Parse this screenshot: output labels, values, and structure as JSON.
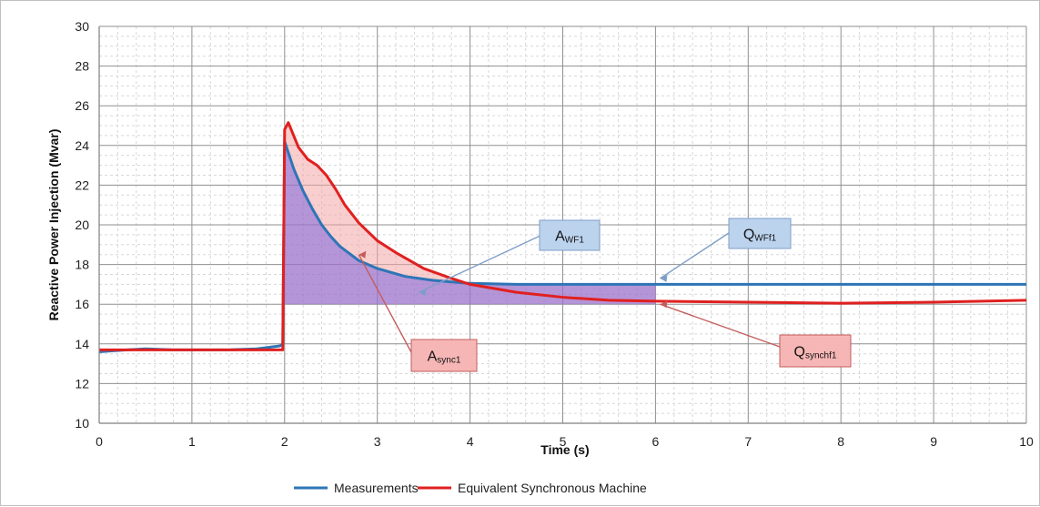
{
  "chart_data": {
    "type": "line",
    "title": "",
    "xlabel": "Time (s)",
    "ylabel": "Reactive Power Injection (Mvar)",
    "xlim": [
      0,
      10
    ],
    "ylim": [
      10,
      30
    ],
    "x_ticks": [
      0,
      1,
      2,
      3,
      4,
      5,
      6,
      7,
      8,
      9,
      10
    ],
    "y_ticks": [
      10,
      12,
      14,
      16,
      18,
      20,
      22,
      24,
      26,
      28,
      30
    ],
    "grid": true,
    "legend_position": "bottom",
    "series": [
      {
        "name": "Measurements",
        "color": "#2e75b6",
        "points": [
          [
            0.0,
            13.6
          ],
          [
            0.3,
            13.7
          ],
          [
            0.5,
            13.75
          ],
          [
            0.8,
            13.7
          ],
          [
            1.0,
            13.7
          ],
          [
            1.4,
            13.7
          ],
          [
            1.7,
            13.75
          ],
          [
            1.95,
            13.9
          ],
          [
            1.98,
            14.0
          ],
          [
            2.0,
            24.2
          ],
          [
            2.05,
            23.5
          ],
          [
            2.1,
            22.8
          ],
          [
            2.2,
            21.7
          ],
          [
            2.3,
            20.8
          ],
          [
            2.4,
            20.0
          ],
          [
            2.5,
            19.4
          ],
          [
            2.6,
            18.9
          ],
          [
            2.8,
            18.2
          ],
          [
            3.0,
            17.8
          ],
          [
            3.3,
            17.4
          ],
          [
            3.6,
            17.2
          ],
          [
            4.0,
            17.05
          ],
          [
            4.5,
            17.0
          ],
          [
            5.0,
            17.0
          ],
          [
            6.0,
            17.0
          ],
          [
            8.0,
            17.0
          ],
          [
            10.0,
            17.0
          ]
        ]
      },
      {
        "name": "Equivalent Synchronous Machine",
        "color": "#e02020",
        "points": [
          [
            0.0,
            13.7
          ],
          [
            0.5,
            13.7
          ],
          [
            1.0,
            13.7
          ],
          [
            1.5,
            13.7
          ],
          [
            1.98,
            13.7
          ],
          [
            2.0,
            24.8
          ],
          [
            2.04,
            25.15
          ],
          [
            2.08,
            24.7
          ],
          [
            2.15,
            23.9
          ],
          [
            2.25,
            23.3
          ],
          [
            2.35,
            23.0
          ],
          [
            2.45,
            22.5
          ],
          [
            2.55,
            21.8
          ],
          [
            2.65,
            21.0
          ],
          [
            2.8,
            20.1
          ],
          [
            3.0,
            19.2
          ],
          [
            3.2,
            18.6
          ],
          [
            3.5,
            17.8
          ],
          [
            3.8,
            17.3
          ],
          [
            4.0,
            17.0
          ],
          [
            4.5,
            16.6
          ],
          [
            5.0,
            16.35
          ],
          [
            5.5,
            16.2
          ],
          [
            6.0,
            16.15
          ],
          [
            7.0,
            16.1
          ],
          [
            8.0,
            16.05
          ],
          [
            9.0,
            16.1
          ],
          [
            10.0,
            16.2
          ]
        ]
      }
    ],
    "shaded_regions": [
      {
        "name": "sync-area",
        "color": "#f4a6a6",
        "description": "between the two curves from t=2 to t=4"
      },
      {
        "name": "wf-area",
        "color": "#9b72c9",
        "description": "between Measurements and y=16 from t=2 to t=6"
      }
    ],
    "annotations": [
      {
        "id": "awf1",
        "main": "A",
        "sub": "WF1",
        "box_color": "#bcd3ee",
        "border_color": "#7f9ec7",
        "target": [
          3.45,
          16.6
        ]
      },
      {
        "id": "qwff1",
        "main": "Q",
        "sub": "WFf1",
        "box_color": "#bcd3ee",
        "border_color": "#7f9ec7",
        "target": [
          6.05,
          17.3
        ]
      },
      {
        "id": "async1",
        "main": "A",
        "sub": "sync1",
        "box_color": "#f6b6b6",
        "border_color": "#c45c5c",
        "target": [
          2.8,
          18.5
        ]
      },
      {
        "id": "qsynchf1",
        "main": "Q",
        "sub": "synchf1",
        "box_color": "#f6b6b6",
        "border_color": "#c45c5c",
        "target": [
          6.05,
          16.0
        ]
      }
    ]
  }
}
